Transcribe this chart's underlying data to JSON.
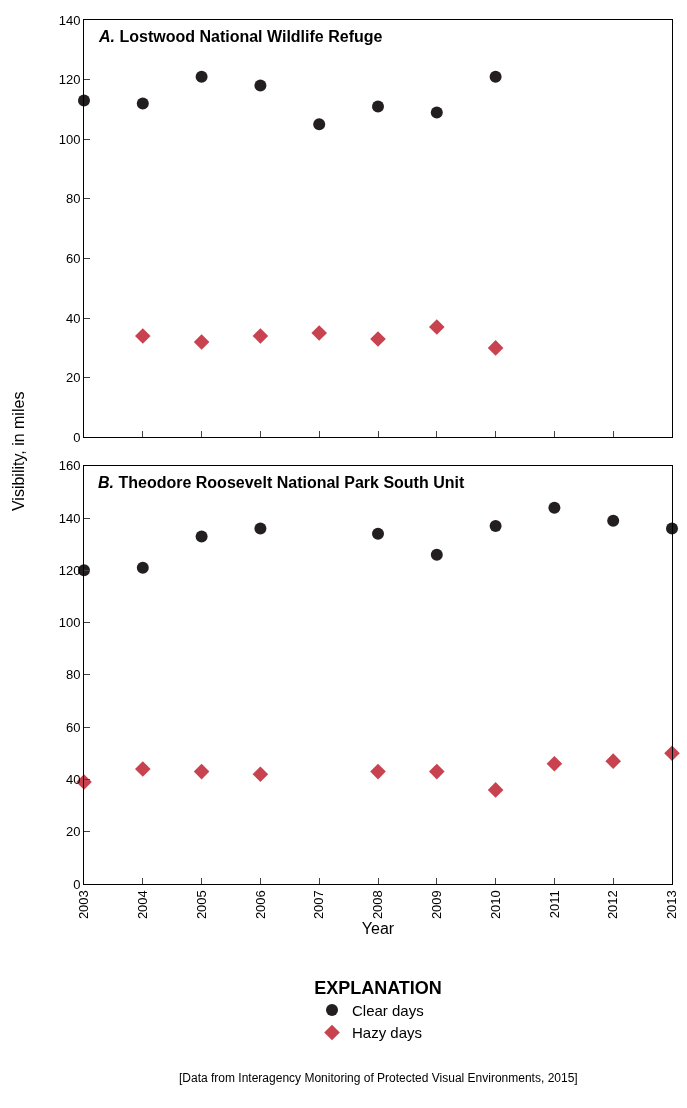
{
  "chart_data": [
    {
      "type": "scatter",
      "title": "A. Lostwood National Wildlife Refuge",
      "ylabel": "Visibility, in miles",
      "x": [
        2003,
        2004,
        2005,
        2006,
        2007,
        2008,
        2009,
        2010
      ],
      "series": [
        {
          "color": "#231f20",
          "marker": "circle",
          "values": [
            113,
            112,
            121,
            118,
            105,
            111,
            109,
            121
          ]
        },
        {
          "color": "#c8434f",
          "marker": "diamond",
          "values": [
            null,
            34,
            32,
            34,
            35,
            33,
            37,
            30
          ]
        }
      ],
      "xlim": [
        2003,
        2013
      ],
      "xticks": [
        2003,
        2004,
        2005,
        2006,
        2007,
        2008,
        2009,
        2010,
        2011,
        2012,
        2013
      ],
      "ylim": [
        0,
        140
      ],
      "yticks": [
        0,
        20,
        40,
        60,
        80,
        100,
        120,
        140
      ],
      "tick_labels": "y"
    },
    {
      "type": "scatter",
      "title": "B. Theodore Roosevelt National Park South Unit",
      "xlabel": "Year",
      "legend_title": "EXPLANATION",
      "legend": "bottom",
      "annotations": [
        "[Data from Interagency Monitoring of Protected Visual Environments, 2015]"
      ],
      "x": [
        2003,
        2004,
        2005,
        2006,
        2007,
        2008,
        2009,
        2010,
        2011,
        2012,
        2013
      ],
      "series": [
        {
          "name": "Clear days",
          "color": "#231f20",
          "marker": "circle",
          "values": [
            120,
            121,
            133,
            136,
            null,
            134,
            126,
            137,
            144,
            139,
            136
          ]
        },
        {
          "name": "Hazy days",
          "color": "#c8434f",
          "marker": "diamond",
          "values": [
            39,
            44,
            43,
            42,
            null,
            43,
            43,
            36,
            46,
            47,
            50
          ]
        }
      ],
      "xlim": [
        2003,
        2013
      ],
      "xticks": [
        2003,
        2004,
        2005,
        2006,
        2007,
        2008,
        2009,
        2010,
        2011,
        2012,
        2013
      ],
      "ylim": [
        0,
        160
      ],
      "yticks": [
        0,
        20,
        40,
        60,
        80,
        100,
        120,
        140,
        160
      ]
    }
  ]
}
